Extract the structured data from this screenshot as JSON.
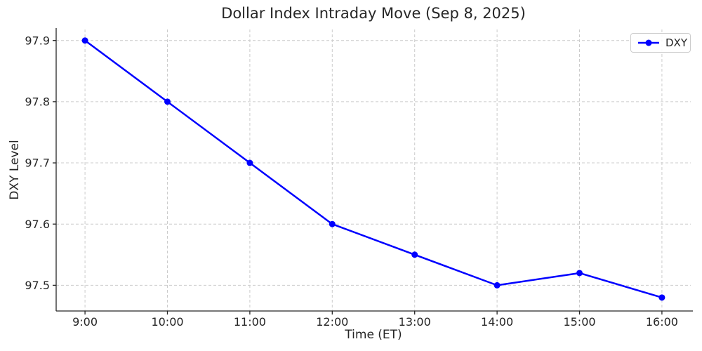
{
  "chart_data": {
    "type": "line",
    "title": "Dollar Index Intraday Move (Sep 8, 2025)",
    "xlabel": "Time (ET)",
    "ylabel": "DXY Level",
    "categories": [
      "9:00",
      "10:00",
      "11:00",
      "12:00",
      "13:00",
      "14:00",
      "15:00",
      "16:00"
    ],
    "x": [
      9,
      10,
      11,
      12,
      13,
      14,
      15,
      16
    ],
    "series": [
      {
        "name": "DXY",
        "color": "#0000ff",
        "marker": "circle",
        "values": [
          97.9,
          97.8,
          97.7,
          97.6,
          97.55,
          97.5,
          97.52,
          97.48
        ]
      }
    ],
    "yticks": [
      97.5,
      97.6,
      97.7,
      97.8,
      97.9
    ],
    "ytick_labels": [
      "97.5",
      "97.6",
      "97.7",
      "97.8",
      "97.9"
    ],
    "xlim": [
      8.65,
      16.35
    ],
    "ylim": [
      97.458,
      97.918
    ],
    "grid": true,
    "grid_color": "#cccccc",
    "axis_color": "#262626",
    "text_color": "#262626",
    "legend_position": "upper right",
    "legend_entries": [
      "DXY"
    ]
  }
}
